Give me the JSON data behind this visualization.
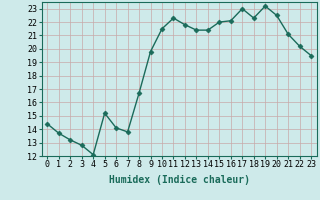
{
  "x": [
    0,
    1,
    2,
    3,
    4,
    5,
    6,
    7,
    8,
    9,
    10,
    11,
    12,
    13,
    14,
    15,
    16,
    17,
    18,
    19,
    20,
    21,
    22,
    23
  ],
  "y": [
    14.4,
    13.7,
    13.2,
    12.8,
    12.1,
    15.2,
    14.1,
    13.8,
    16.7,
    19.8,
    21.5,
    22.3,
    21.8,
    21.4,
    21.4,
    22.0,
    22.1,
    23.0,
    22.3,
    23.2,
    22.5,
    21.1,
    20.2,
    19.5
  ],
  "line_color": "#1a6b5a",
  "marker": "D",
  "marker_size": 2.5,
  "bg_color": "#ceeaea",
  "grid_color_major": "#b8d8d8",
  "grid_color_minor": "#e8c8c8",
  "xlabel": "Humidex (Indice chaleur)",
  "ylim": [
    12,
    23.5
  ],
  "xlim": [
    -0.5,
    23.5
  ],
  "yticks": [
    12,
    13,
    14,
    15,
    16,
    17,
    18,
    19,
    20,
    21,
    22,
    23
  ],
  "xticks": [
    0,
    1,
    2,
    3,
    4,
    5,
    6,
    7,
    8,
    9,
    10,
    11,
    12,
    13,
    14,
    15,
    16,
    17,
    18,
    19,
    20,
    21,
    22,
    23
  ],
  "xlabel_fontsize": 7,
  "tick_fontsize": 6,
  "line_width": 1.0
}
